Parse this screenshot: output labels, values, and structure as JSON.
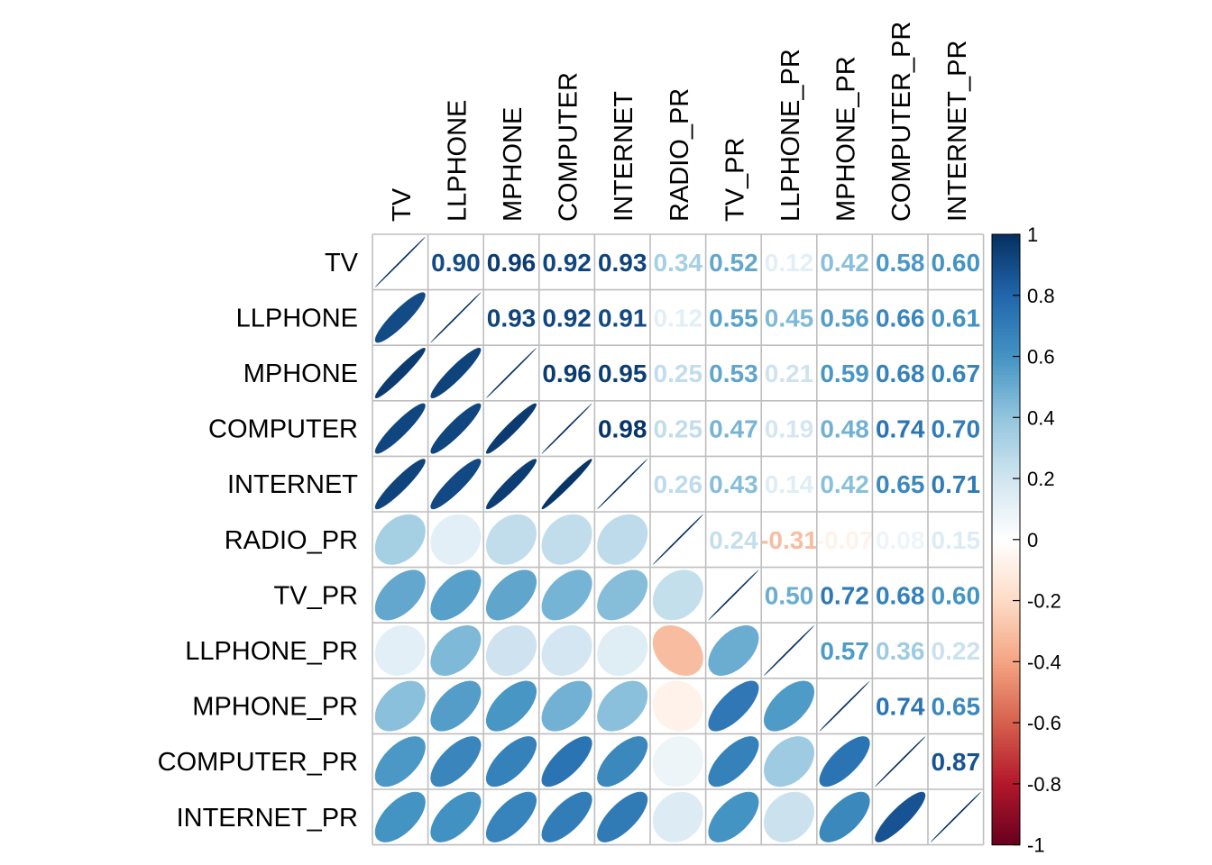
{
  "chart_data": {
    "type": "heatmap",
    "title": "",
    "variables": [
      "TV",
      "LLPHONE",
      "MPHONE",
      "COMPUTER",
      "INTERNET",
      "RADIO_PR",
      "TV_PR",
      "LLPHONE_PR",
      "MPHONE_PR",
      "COMPUTER_PR",
      "INTERNET_PR"
    ],
    "upper_method": "number",
    "lower_method": "ellipse",
    "diag_method": "ellipse",
    "matrix": [
      [
        1.0,
        0.9,
        0.96,
        0.92,
        0.93,
        0.34,
        0.52,
        0.12,
        0.42,
        0.58,
        0.6
      ],
      [
        0.9,
        1.0,
        0.93,
        0.92,
        0.91,
        0.12,
        0.55,
        0.45,
        0.56,
        0.66,
        0.61
      ],
      [
        0.96,
        0.93,
        1.0,
        0.96,
        0.95,
        0.25,
        0.53,
        0.21,
        0.59,
        0.68,
        0.67
      ],
      [
        0.92,
        0.92,
        0.96,
        1.0,
        0.98,
        0.25,
        0.47,
        0.19,
        0.48,
        0.74,
        0.7
      ],
      [
        0.93,
        0.91,
        0.95,
        0.98,
        1.0,
        0.26,
        0.43,
        0.14,
        0.42,
        0.65,
        0.71
      ],
      [
        0.34,
        0.12,
        0.25,
        0.25,
        0.26,
        1.0,
        0.24,
        -0.31,
        -0.07,
        0.08,
        0.15
      ],
      [
        0.52,
        0.55,
        0.53,
        0.47,
        0.43,
        0.24,
        1.0,
        0.5,
        0.72,
        0.68,
        0.6
      ],
      [
        0.12,
        0.45,
        0.21,
        0.19,
        0.14,
        -0.31,
        0.5,
        1.0,
        0.57,
        0.36,
        0.22
      ],
      [
        0.42,
        0.56,
        0.59,
        0.48,
        0.42,
        -0.07,
        0.72,
        0.57,
        1.0,
        0.74,
        0.65
      ],
      [
        0.58,
        0.66,
        0.68,
        0.74,
        0.65,
        0.08,
        0.68,
        0.36,
        0.74,
        1.0,
        0.87
      ],
      [
        0.6,
        0.61,
        0.67,
        0.7,
        0.71,
        0.15,
        0.6,
        0.22,
        0.65,
        0.87,
        1.0
      ]
    ],
    "colorbar": {
      "range": [
        -1,
        1
      ],
      "ticks": [
        "1",
        "0.8",
        "0.6",
        "0.4",
        "0.2",
        "0",
        "-0.2",
        "-0.4",
        "-0.6",
        "-0.8",
        "-1"
      ],
      "stops": [
        "#67001F",
        "#B2182B",
        "#D6604D",
        "#F4A582",
        "#FDDBC7",
        "#FFFFFF",
        "#D1E5F0",
        "#92C5DE",
        "#4393C3",
        "#2166AC",
        "#053061"
      ]
    },
    "grid_color": "#BEBEBE",
    "grid": true,
    "legend_position": "right"
  }
}
